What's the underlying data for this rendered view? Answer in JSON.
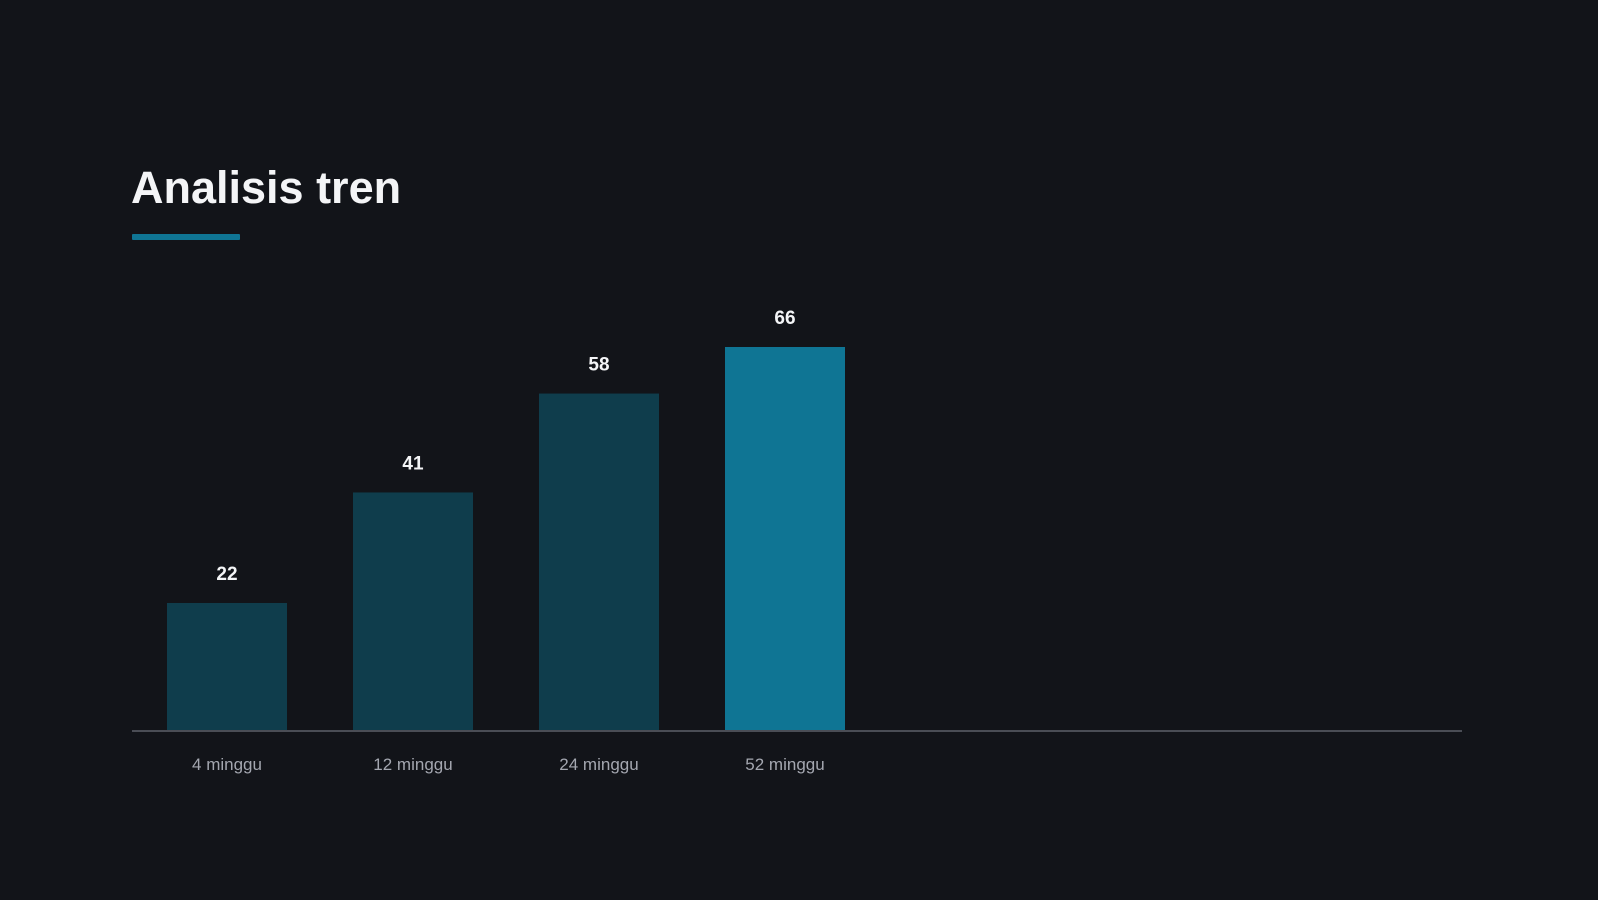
{
  "slide": {
    "title": "Analisis tren",
    "background_color": "#121419",
    "title_color": "#f4f5f7",
    "accent_color": "#0f7594"
  },
  "chart_data": {
    "type": "bar",
    "categories": [
      "4 minggu",
      "12 minggu",
      "24 minggu",
      "52 minggu"
    ],
    "values": [
      22,
      41,
      58,
      66
    ],
    "data_labels": [
      "22",
      "41",
      "58",
      "66"
    ],
    "title": "",
    "xlabel": "",
    "ylabel": "",
    "ylim": [
      0,
      66
    ],
    "grid": false,
    "legend": "none",
    "highlighted_category": "52 minggu",
    "bar_color": "#0f3d4c",
    "highlight_color": "#0f7594",
    "axis_color": "#4a4d55",
    "label_color": "#a4a7b0",
    "value_label_color": "#f4f5f7"
  }
}
